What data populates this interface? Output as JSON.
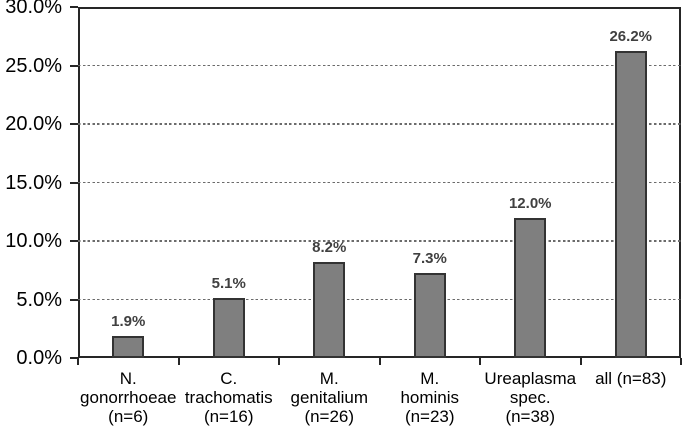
{
  "chart_data": {
    "type": "bar",
    "title": "",
    "xlabel": "",
    "ylabel": "",
    "categories": [
      "N.\ngonorrhoeae\n(n=6)",
      "C.\ntrachomatis\n(n=16)",
      "M.\ngenitalium\n(n=26)",
      "M.\nhominis\n(n=23)",
      "Ureaplasma\nspec.\n(n=38)",
      "all (n=83)"
    ],
    "values": [
      1.9,
      5.1,
      8.2,
      7.3,
      12.0,
      26.2
    ],
    "bar_labels": [
      "1.9%",
      "5.1%",
      "8.2%",
      "7.3%",
      "12.0%",
      "26.2%"
    ],
    "ylim": [
      0,
      30
    ],
    "ytick_step": 5,
    "ytick_labels": [
      "0.0%",
      "5.0%",
      "10.0%",
      "15.0%",
      "20.0%",
      "25.0%",
      "30.0%"
    ],
    "grid": "horizontal-dashed",
    "legend_position": "none",
    "colors": {
      "bar_fill": "#7f7f7f",
      "bar_border": "#333333",
      "grid_line": "#6b6b6b",
      "axis_line": "#262626",
      "data_label": "#404040",
      "tick_label": "#000000",
      "background": "#ffffff"
    }
  }
}
